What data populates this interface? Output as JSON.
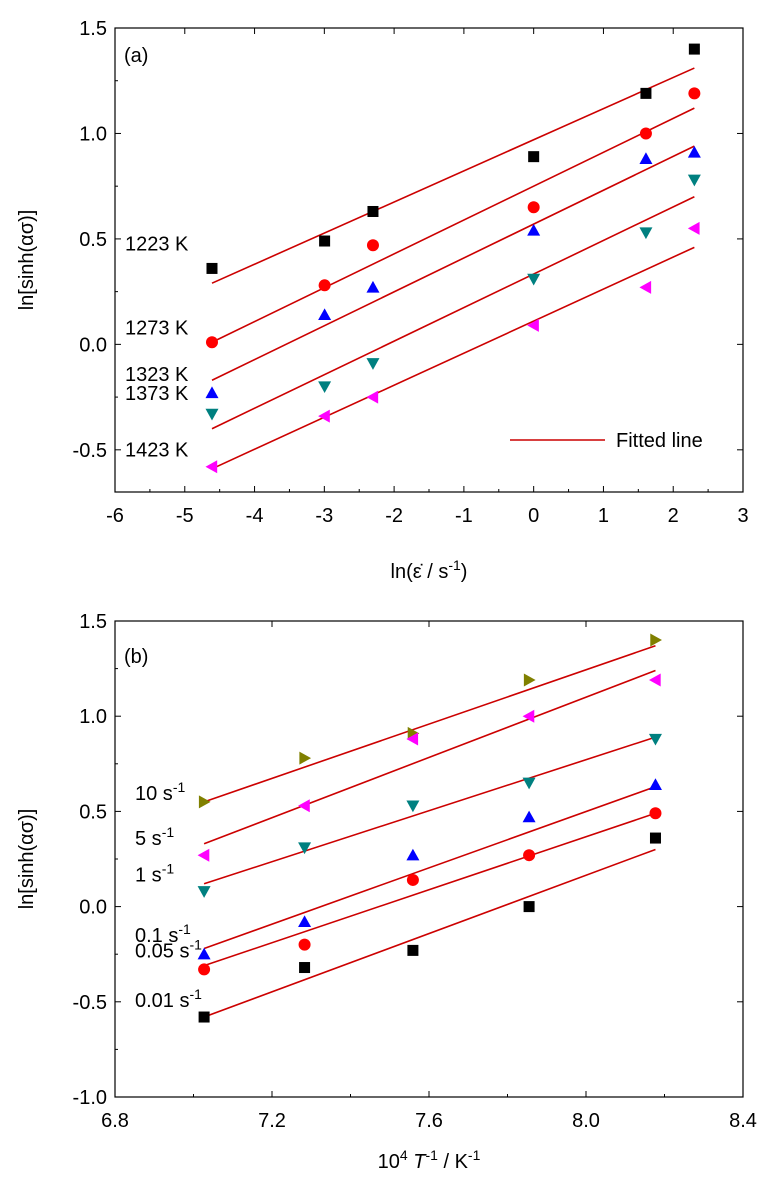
{
  "chart_data": [
    {
      "type": "scatter",
      "panel_label": "(a)",
      "xlabel": "ln(ε̇ / s⁻¹)",
      "ylabel": "ln[sinh(ασ)]",
      "xlim": [
        -6,
        3
      ],
      "ylim": [
        -0.7,
        1.5
      ],
      "x_ticks": [
        -6,
        -5,
        -4,
        -3,
        -2,
        -1,
        0,
        1,
        2,
        3
      ],
      "x_tick_labels": [
        "-6",
        "-5",
        "-4",
        "-3",
        "-2",
        "-1",
        "0",
        "1",
        "2",
        "3"
      ],
      "y_ticks": [
        -0.5,
        0.0,
        0.5,
        1.0,
        1.5
      ],
      "y_tick_labels": [
        "-0.5",
        "0.0",
        "0.5",
        "1.0",
        "1.5"
      ],
      "legend": {
        "label": "Fitted line",
        "color": "#cc0000",
        "position": "bottom-right"
      },
      "series": [
        {
          "name": "1223 K",
          "marker": "square",
          "color": "#000000",
          "x": [
            -4.61,
            -2.996,
            -2.303,
            0,
            1.609,
            2.303
          ],
          "y": [
            0.36,
            0.49,
            0.63,
            0.89,
            1.19,
            1.4
          ],
          "fit": [
            [
              -4.61,
              0.29
            ],
            [
              2.303,
              1.31
            ]
          ]
        },
        {
          "name": "1273 K",
          "marker": "circle",
          "color": "#ff0000",
          "x": [
            -4.61,
            -2.996,
            -2.303,
            0,
            1.609,
            2.303
          ],
          "y": [
            0.01,
            0.28,
            0.47,
            0.65,
            1.0,
            1.19
          ],
          "fit": [
            [
              -4.61,
              0.01
            ],
            [
              2.303,
              1.12
            ]
          ]
        },
        {
          "name": "1323 K",
          "marker": "triangle-up",
          "color": "#0000ff",
          "x": [
            -4.61,
            -2.996,
            -2.303,
            0,
            1.609,
            2.303
          ],
          "y": [
            -0.23,
            0.14,
            0.27,
            0.54,
            0.88,
            0.91
          ],
          "fit": [
            [
              -4.61,
              -0.17
            ],
            [
              2.303,
              0.94
            ]
          ]
        },
        {
          "name": "1373 K",
          "marker": "triangle-down",
          "color": "#008080",
          "x": [
            -4.61,
            -2.996,
            -2.303,
            0,
            1.609,
            2.303
          ],
          "y": [
            -0.33,
            -0.2,
            -0.09,
            0.31,
            0.53,
            0.78
          ],
          "fit": [
            [
              -4.61,
              -0.4
            ],
            [
              2.303,
              0.7
            ]
          ]
        },
        {
          "name": "1423 K",
          "marker": "triangle-left",
          "color": "#ff00ff",
          "x": [
            -4.61,
            -2.996,
            -2.303,
            0,
            1.609,
            2.303
          ],
          "y": [
            -0.58,
            -0.34,
            -0.25,
            0.09,
            0.27,
            0.55
          ],
          "fit": [
            [
              -4.61,
              -0.59
            ],
            [
              2.303,
              0.46
            ]
          ]
        }
      ]
    },
    {
      "type": "scatter",
      "panel_label": "(b)",
      "xlabel": "10⁴ T⁻¹ / K⁻¹",
      "ylabel": "ln[sinh(ασ)]",
      "xlim": [
        6.8,
        8.4
      ],
      "ylim": [
        -1.0,
        1.5
      ],
      "x_ticks": [
        6.8,
        7.2,
        7.6,
        8.0,
        8.4
      ],
      "x_tick_labels": [
        "6.8",
        "7.2",
        "7.6",
        "8.0",
        "8.4"
      ],
      "y_ticks": [
        -1.0,
        -0.5,
        0.0,
        0.5,
        1.0,
        1.5
      ],
      "y_tick_labels": [
        "-1.0",
        "-0.5",
        "0.0",
        "0.5",
        "1.0",
        "1.5"
      ],
      "series": [
        {
          "name": "10 s⁻¹",
          "marker": "triangle-right",
          "color": "#808000",
          "x": [
            7.027,
            7.283,
            7.559,
            7.855,
            8.177
          ],
          "y": [
            0.55,
            0.78,
            0.91,
            1.19,
            1.4
          ],
          "fit": [
            [
              7.027,
              0.55
            ],
            [
              8.177,
              1.37
            ]
          ]
        },
        {
          "name": "5 s⁻¹",
          "marker": "triangle-left",
          "color": "#ff00ff",
          "x": [
            7.027,
            7.283,
            7.559,
            7.855,
            8.177
          ],
          "y": [
            0.27,
            0.53,
            0.88,
            1.0,
            1.19
          ],
          "fit": [
            [
              7.027,
              0.33
            ],
            [
              8.177,
              1.24
            ]
          ]
        },
        {
          "name": "1 s⁻¹",
          "marker": "triangle-down",
          "color": "#008080",
          "x": [
            7.027,
            7.283,
            7.559,
            7.855,
            8.177
          ],
          "y": [
            0.08,
            0.31,
            0.53,
            0.65,
            0.88
          ],
          "fit": [
            [
              7.027,
              0.12
            ],
            [
              8.177,
              0.89
            ]
          ]
        },
        {
          "name": "0.1 s⁻¹",
          "marker": "triangle-up",
          "color": "#0000ff",
          "x": [
            7.027,
            7.283,
            7.559,
            7.855,
            8.177
          ],
          "y": [
            -0.25,
            -0.08,
            0.27,
            0.47,
            0.64
          ],
          "fit": [
            [
              7.027,
              -0.22
            ],
            [
              8.177,
              0.63
            ]
          ]
        },
        {
          "name": "0.05 s⁻¹",
          "marker": "circle",
          "color": "#ff0000",
          "x": [
            7.027,
            7.283,
            7.559,
            7.855,
            8.177
          ],
          "y": [
            -0.33,
            -0.2,
            0.14,
            0.27,
            0.49
          ],
          "fit": [
            [
              7.027,
              -0.31
            ],
            [
              8.177,
              0.49
            ]
          ]
        },
        {
          "name": "0.01 s⁻¹",
          "marker": "square",
          "color": "#000000",
          "x": [
            7.027,
            7.283,
            7.559,
            7.855,
            8.177
          ],
          "y": [
            -0.58,
            -0.32,
            -0.23,
            0.0,
            0.36
          ],
          "fit": [
            [
              7.027,
              -0.58
            ],
            [
              8.177,
              0.3
            ]
          ]
        }
      ]
    }
  ]
}
